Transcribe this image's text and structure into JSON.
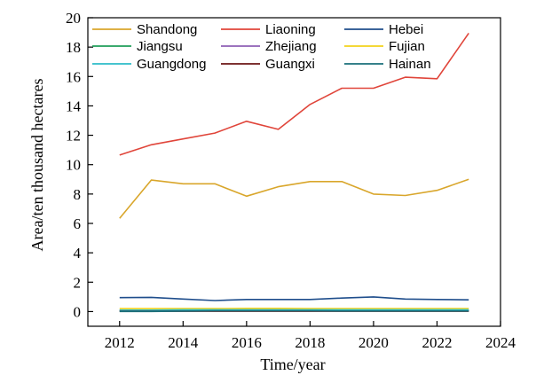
{
  "chart_data": {
    "type": "line",
    "title": "",
    "xlabel": "Time/year",
    "ylabel": "Area/ten thousand hectares",
    "xlim": [
      2011,
      2024
    ],
    "ylim": [
      -1,
      20
    ],
    "x_ticks": [
      2012,
      2014,
      2016,
      2018,
      2020,
      2022,
      2024
    ],
    "y_ticks": [
      0,
      2,
      4,
      6,
      8,
      10,
      12,
      14,
      16,
      18,
      20
    ],
    "grid": false,
    "legend_position": "top",
    "x": [
      2012,
      2013,
      2014,
      2015,
      2016,
      2017,
      2018,
      2019,
      2020,
      2021,
      2022,
      2023
    ],
    "series": [
      {
        "name": "Shandong",
        "color": "#d9a62b",
        "values": [
          6.35,
          8.95,
          8.7,
          8.7,
          7.85,
          8.5,
          8.85,
          8.85,
          8.0,
          7.9,
          8.25,
          9.0
        ]
      },
      {
        "name": "Liaoning",
        "color": "#e0453a",
        "values": [
          10.65,
          11.35,
          11.75,
          12.15,
          12.95,
          12.4,
          14.1,
          15.2,
          15.2,
          15.95,
          15.85,
          18.95
        ]
      },
      {
        "name": "Hebei",
        "color": "#1f4e8c",
        "values": [
          0.95,
          0.97,
          0.85,
          0.75,
          0.82,
          0.82,
          0.82,
          0.92,
          1.0,
          0.85,
          0.82,
          0.8
        ]
      },
      {
        "name": "Jiangsu",
        "color": "#1f9e5a",
        "values": [
          0.05,
          0.05,
          0.06,
          0.06,
          0.06,
          0.06,
          0.06,
          0.06,
          0.05,
          0.05,
          0.05,
          0.05
        ]
      },
      {
        "name": "Zhejiang",
        "color": "#8e5fb4",
        "values": [
          0.1,
          0.1,
          0.1,
          0.1,
          0.1,
          0.1,
          0.1,
          0.1,
          0.1,
          0.1,
          0.1,
          0.1
        ]
      },
      {
        "name": "Fujian",
        "color": "#f2d21b",
        "values": [
          0.2,
          0.2,
          0.2,
          0.2,
          0.22,
          0.22,
          0.2,
          0.2,
          0.2,
          0.2,
          0.2,
          0.2
        ]
      },
      {
        "name": "Guangdong",
        "color": "#2bbcc8",
        "values": [
          0.1,
          0.1,
          0.12,
          0.12,
          0.12,
          0.12,
          0.12,
          0.12,
          0.12,
          0.12,
          0.12,
          0.12
        ]
      },
      {
        "name": "Guangxi",
        "color": "#6b1414",
        "values": [
          0.02,
          0.02,
          0.02,
          0.02,
          0.02,
          0.02,
          0.02,
          0.02,
          0.02,
          0.02,
          0.02,
          0.02
        ]
      },
      {
        "name": "Hainan",
        "color": "#1a6f7a",
        "values": [
          0.01,
          0.01,
          0.03,
          0.05,
          0.05,
          0.05,
          0.05,
          0.04,
          0.04,
          0.04,
          0.04,
          0.04
        ]
      }
    ]
  }
}
